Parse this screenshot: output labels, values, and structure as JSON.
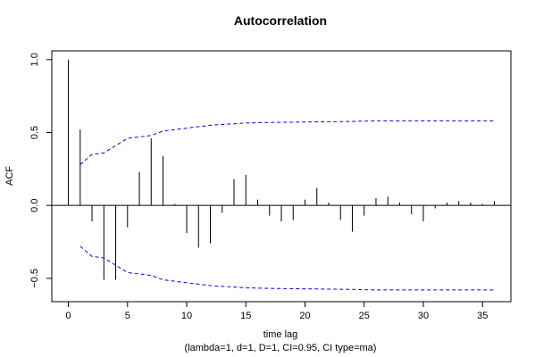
{
  "chart_data": {
    "type": "bar",
    "title": "Autocorrelation",
    "xlabel": "time lag",
    "subtitle": "(lambda=1, d=1, D=1, CI=0.95, CI type=ma)",
    "ylabel": "ACF",
    "xlim": [
      -1.4,
      37.4
    ],
    "ylim": [
      -0.66,
      1.06
    ],
    "x_ticks": [
      0,
      5,
      10,
      15,
      20,
      25,
      30,
      35
    ],
    "y_ticks": [
      -0.5,
      0.0,
      0.5,
      1.0
    ],
    "y_tick_labels": [
      "−0.5",
      "0.0",
      "0.5",
      "1.0"
    ],
    "ci_color": "#0000ff",
    "bar_color": "#000000",
    "lags": [
      0,
      1,
      2,
      3,
      4,
      5,
      6,
      7,
      8,
      9,
      10,
      11,
      12,
      13,
      14,
      15,
      16,
      17,
      18,
      19,
      20,
      21,
      22,
      23,
      24,
      25,
      26,
      27,
      28,
      29,
      30,
      31,
      32,
      33,
      34,
      35,
      36
    ],
    "acf": [
      1.0,
      0.52,
      -0.11,
      -0.51,
      -0.51,
      -0.15,
      0.23,
      0.46,
      0.34,
      0.01,
      -0.19,
      -0.29,
      -0.26,
      -0.05,
      0.18,
      0.21,
      0.04,
      -0.07,
      -0.11,
      -0.1,
      0.04,
      0.12,
      0.02,
      -0.1,
      -0.18,
      -0.07,
      0.05,
      0.06,
      0.02,
      -0.06,
      -0.11,
      -0.02,
      0.02,
      0.03,
      0.02,
      0.01,
      0.03
    ],
    "ci_upper": [
      null,
      0.28,
      0.35,
      0.36,
      0.41,
      0.46,
      0.47,
      0.48,
      0.51,
      0.52,
      0.53,
      0.54,
      0.55,
      0.555,
      0.56,
      0.565,
      0.567,
      0.569,
      0.57,
      0.571,
      0.572,
      0.573,
      0.574,
      0.575,
      0.576,
      0.578,
      0.58,
      0.58,
      0.58,
      0.58,
      0.58,
      0.58,
      0.58,
      0.58,
      0.58,
      0.58,
      0.58
    ],
    "ci_lower": [
      null,
      -0.28,
      -0.35,
      -0.36,
      -0.41,
      -0.46,
      -0.47,
      -0.48,
      -0.51,
      -0.52,
      -0.53,
      -0.54,
      -0.55,
      -0.555,
      -0.56,
      -0.565,
      -0.567,
      -0.569,
      -0.57,
      -0.571,
      -0.572,
      -0.573,
      -0.574,
      -0.575,
      -0.576,
      -0.578,
      -0.58,
      -0.58,
      -0.58,
      -0.58,
      -0.58,
      -0.58,
      -0.58,
      -0.58,
      -0.58,
      -0.58,
      -0.58
    ]
  }
}
